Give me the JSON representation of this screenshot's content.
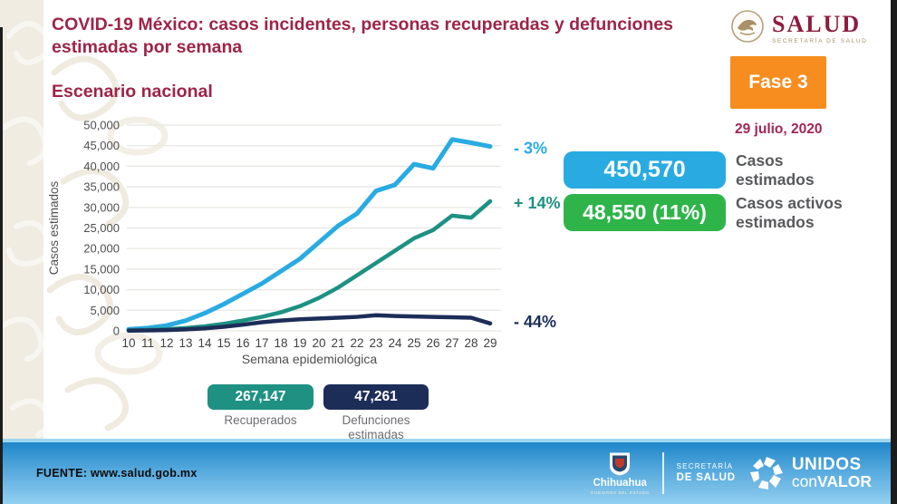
{
  "colors": {
    "maroon": "#9d2449",
    "blue": "#29abe2",
    "green": "#2fb44a",
    "teal": "#1e9183",
    "navy": "#1c2e58",
    "orange": "#f68d1e"
  },
  "header": {
    "title": "COVID-19 México: casos incidentes, personas recuperadas y defunciones estimadas por semana",
    "subtitle": "Escenario nacional",
    "salud_wordmark": "SALUD",
    "salud_sub": "SECRETARÍA DE SALUD"
  },
  "phase": {
    "label": "Fase 3",
    "date": "29 julio, 2020"
  },
  "stats": [
    {
      "value": "450,570",
      "label": "Casos estimados",
      "color": "#29abe2"
    },
    {
      "value": "48,550 (11%)",
      "label": "Casos activos estimados",
      "color": "#2fb44a"
    }
  ],
  "chart_data": {
    "type": "line",
    "title": "Escenario nacional",
    "xlabel": "Semana epidemiológica",
    "ylabel": "Casos estimados",
    "x": [
      10,
      11,
      12,
      13,
      14,
      15,
      16,
      17,
      18,
      19,
      20,
      21,
      22,
      23,
      24,
      25,
      26,
      27,
      28,
      29
    ],
    "ylim": [
      0,
      50000
    ],
    "ytick_step": 5000,
    "grid": true,
    "series": [
      {
        "name": "Casos estimados",
        "color": "#29abe2",
        "end_label": "- 3%",
        "values": [
          400,
          700,
          1300,
          2500,
          4300,
          6500,
          9000,
          11500,
          14500,
          17500,
          21500,
          25500,
          28500,
          34000,
          35500,
          40500,
          39500,
          46500,
          45700,
          44800
        ]
      },
      {
        "name": "Recuperados",
        "color": "#1e9183",
        "end_label": "+ 14%",
        "values": [
          150,
          250,
          400,
          700,
          1100,
          1700,
          2500,
          3400,
          4500,
          6000,
          8000,
          10500,
          13500,
          16500,
          19500,
          22500,
          24500,
          28000,
          27500,
          31500
        ]
      },
      {
        "name": "Defunciones estimadas",
        "color": "#1c2e58",
        "end_label": "- 44%",
        "values": [
          50,
          100,
          200,
          350,
          600,
          1000,
          1500,
          2100,
          2500,
          2800,
          3000,
          3200,
          3400,
          3800,
          3600,
          3500,
          3400,
          3300,
          3200,
          1800
        ]
      }
    ]
  },
  "chart_badges": [
    {
      "value": "267,147",
      "label": "Recuperados",
      "color": "#1e9183"
    },
    {
      "value": "47,261",
      "label": "Defunciones estimadas",
      "color": "#1c2e58"
    }
  ],
  "footer": {
    "source": "FUENTE: www.salud.gob.mx",
    "chihuahua": "Chihuahua",
    "chihuahua_sub": "GOBIERNO DEL ESTADO",
    "secretaria_line1": "SECRETARÍA",
    "secretaria_line2": "DE SALUD",
    "unidos_line1": "UNIDOS",
    "unidos_con": "con",
    "unidos_valor": "VALOR"
  }
}
